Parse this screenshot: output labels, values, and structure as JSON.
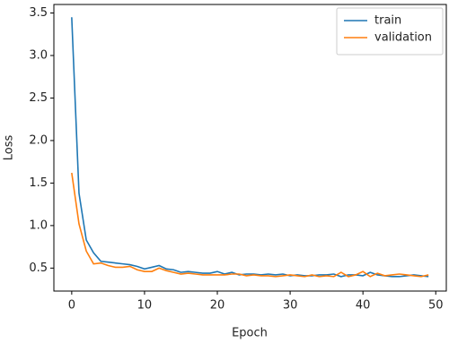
{
  "chart_data": {
    "type": "line",
    "xlabel": "Epoch",
    "ylabel": "Loss",
    "x": [
      0,
      1,
      2,
      3,
      4,
      5,
      6,
      7,
      8,
      9,
      10,
      11,
      12,
      13,
      14,
      15,
      16,
      17,
      18,
      19,
      20,
      21,
      22,
      23,
      24,
      25,
      26,
      27,
      28,
      29,
      30,
      31,
      32,
      33,
      34,
      35,
      36,
      37,
      38,
      39,
      40,
      41,
      42,
      43,
      44,
      45,
      46,
      47,
      48,
      49
    ],
    "series": [
      {
        "name": "train",
        "color": "#1f77b4",
        "values": [
          3.45,
          1.38,
          0.83,
          0.68,
          0.58,
          0.57,
          0.56,
          0.55,
          0.54,
          0.52,
          0.49,
          0.51,
          0.53,
          0.49,
          0.48,
          0.45,
          0.46,
          0.45,
          0.44,
          0.44,
          0.46,
          0.43,
          0.45,
          0.42,
          0.43,
          0.43,
          0.42,
          0.43,
          0.42,
          0.43,
          0.41,
          0.42,
          0.41,
          0.41,
          0.42,
          0.42,
          0.43,
          0.4,
          0.42,
          0.42,
          0.41,
          0.45,
          0.42,
          0.41,
          0.4,
          0.4,
          0.41,
          0.42,
          0.41,
          0.4
        ]
      },
      {
        "name": "validation",
        "color": "#ff7f0e",
        "values": [
          1.62,
          1.02,
          0.7,
          0.55,
          0.56,
          0.53,
          0.51,
          0.51,
          0.52,
          0.48,
          0.46,
          0.46,
          0.5,
          0.47,
          0.45,
          0.43,
          0.44,
          0.43,
          0.42,
          0.42,
          0.42,
          0.42,
          0.43,
          0.43,
          0.41,
          0.42,
          0.41,
          0.41,
          0.4,
          0.41,
          0.42,
          0.41,
          0.4,
          0.42,
          0.4,
          0.41,
          0.4,
          0.45,
          0.4,
          0.42,
          0.46,
          0.4,
          0.44,
          0.41,
          0.42,
          0.43,
          0.42,
          0.41,
          0.4,
          0.42
        ]
      }
    ],
    "xlim": [
      -2.45,
      51.45
    ],
    "ylim": [
      0.23,
      3.6
    ],
    "xticks": [
      0,
      10,
      20,
      30,
      40,
      50
    ],
    "yticks": [
      0.5,
      {
        "value": 1.0,
        "label": "1.0"
      },
      1.5,
      {
        "value": 2.0,
        "label": "2.0"
      },
      2.5,
      {
        "value": 3.0,
        "label": "3.0"
      },
      3.5
    ],
    "legend": "upper right"
  }
}
